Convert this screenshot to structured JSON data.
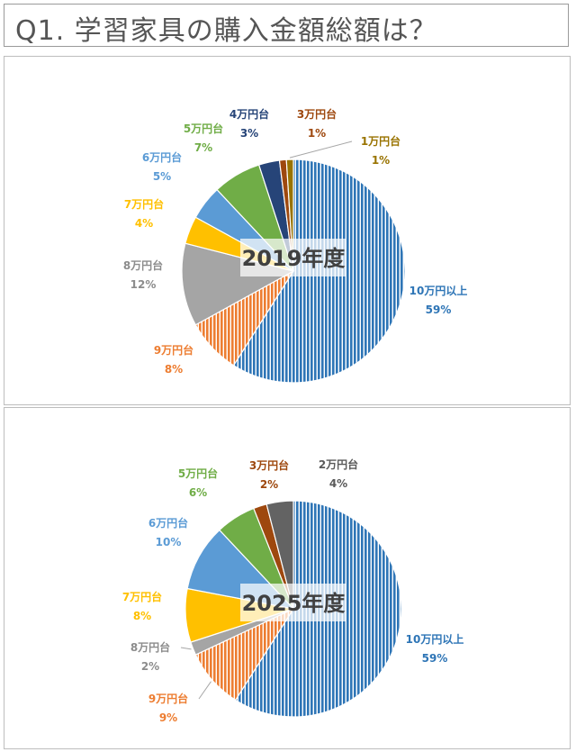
{
  "question": {
    "title": "Q1. 学習家具の購入金額総額は？"
  },
  "chart_data": [
    {
      "type": "pie",
      "title": "2019年度",
      "slices": [
        {
          "label": "10万円以上",
          "value": 59,
          "pct_label": "59%",
          "color": "#2e75b6",
          "pattern": "vstripe"
        },
        {
          "label": "9万円台",
          "value": 8,
          "pct_label": "8%",
          "color": "#ed7d31",
          "pattern": "vstripe"
        },
        {
          "label": "8万円台",
          "value": 12,
          "pct_label": "12%",
          "color": "#a5a5a5",
          "pattern": "solid"
        },
        {
          "label": "7万円台",
          "value": 4,
          "pct_label": "4%",
          "color": "#ffc000",
          "pattern": "solid"
        },
        {
          "label": "6万円台",
          "value": 5,
          "pct_label": "5%",
          "color": "#5b9bd5",
          "pattern": "solid"
        },
        {
          "label": "5万円台",
          "value": 7,
          "pct_label": "7%",
          "color": "#70ad47",
          "pattern": "solid"
        },
        {
          "label": "4万円台",
          "value": 3,
          "pct_label": "3%",
          "color": "#264478",
          "pattern": "solid"
        },
        {
          "label": "3万円台",
          "value": 1,
          "pct_label": "1%",
          "color": "#9e480e",
          "pattern": "solid"
        },
        {
          "label": "1万円台",
          "value": 1,
          "pct_label": "1%",
          "color": "#997300",
          "pattern": "solid"
        }
      ]
    },
    {
      "type": "pie",
      "title": "2025年度",
      "slices": [
        {
          "label": "10万円以上",
          "value": 59,
          "pct_label": "59%",
          "color": "#2e75b6",
          "pattern": "vstripe"
        },
        {
          "label": "9万円台",
          "value": 9,
          "pct_label": "9%",
          "color": "#ed7d31",
          "pattern": "vstripe"
        },
        {
          "label": "8万円台",
          "value": 2,
          "pct_label": "2%",
          "color": "#a5a5a5",
          "pattern": "solid"
        },
        {
          "label": "7万円台",
          "value": 8,
          "pct_label": "8%",
          "color": "#ffc000",
          "pattern": "solid"
        },
        {
          "label": "6万円台",
          "value": 10,
          "pct_label": "10%",
          "color": "#5b9bd5",
          "pattern": "solid"
        },
        {
          "label": "5万円台",
          "value": 6,
          "pct_label": "6%",
          "color": "#70ad47",
          "pattern": "solid"
        },
        {
          "label": "3万円台",
          "value": 2,
          "pct_label": "2%",
          "color": "#9e480e",
          "pattern": "solid"
        },
        {
          "label": "2万円台",
          "value": 4,
          "pct_label": "4%",
          "color": "#636363",
          "pattern": "solid"
        }
      ]
    }
  ]
}
